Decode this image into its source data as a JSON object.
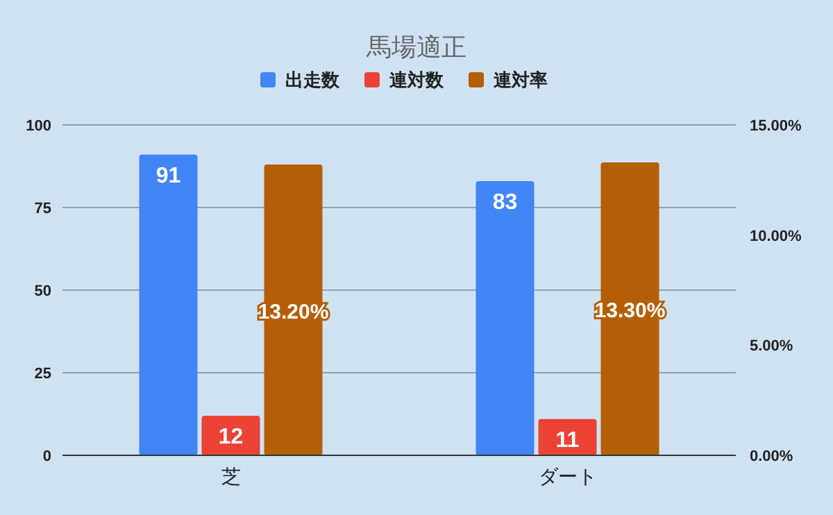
{
  "chart_data": {
    "type": "bar",
    "title": "馬場適正",
    "categories": [
      "芝",
      "ダート"
    ],
    "series": [
      {
        "name": "出走数",
        "color": "#4285f4",
        "values": [
          91,
          83
        ],
        "value_labels": [
          "91",
          "83"
        ]
      },
      {
        "name": "連対数",
        "color": "#ea4335",
        "values": [
          12,
          11
        ],
        "value_labels": [
          "12",
          "11"
        ]
      },
      {
        "name": "連対率",
        "color": "#b45f06",
        "values": [
          13.2,
          13.3
        ],
        "axis": "y2",
        "value_labels": [
          "13.20%",
          "13.30%"
        ]
      }
    ],
    "ylim": [
      0,
      100
    ],
    "yticks": [
      0,
      25,
      50,
      75,
      100
    ],
    "y2lim": [
      0,
      15
    ],
    "y2ticks": [
      {
        "value": 0,
        "label": "0.00%"
      },
      {
        "value": 5,
        "label": "5.00%"
      },
      {
        "value": 10,
        "label": "10.00%"
      },
      {
        "value": 15,
        "label": "15.00%"
      }
    ],
    "grid": "y",
    "legend": "top"
  }
}
